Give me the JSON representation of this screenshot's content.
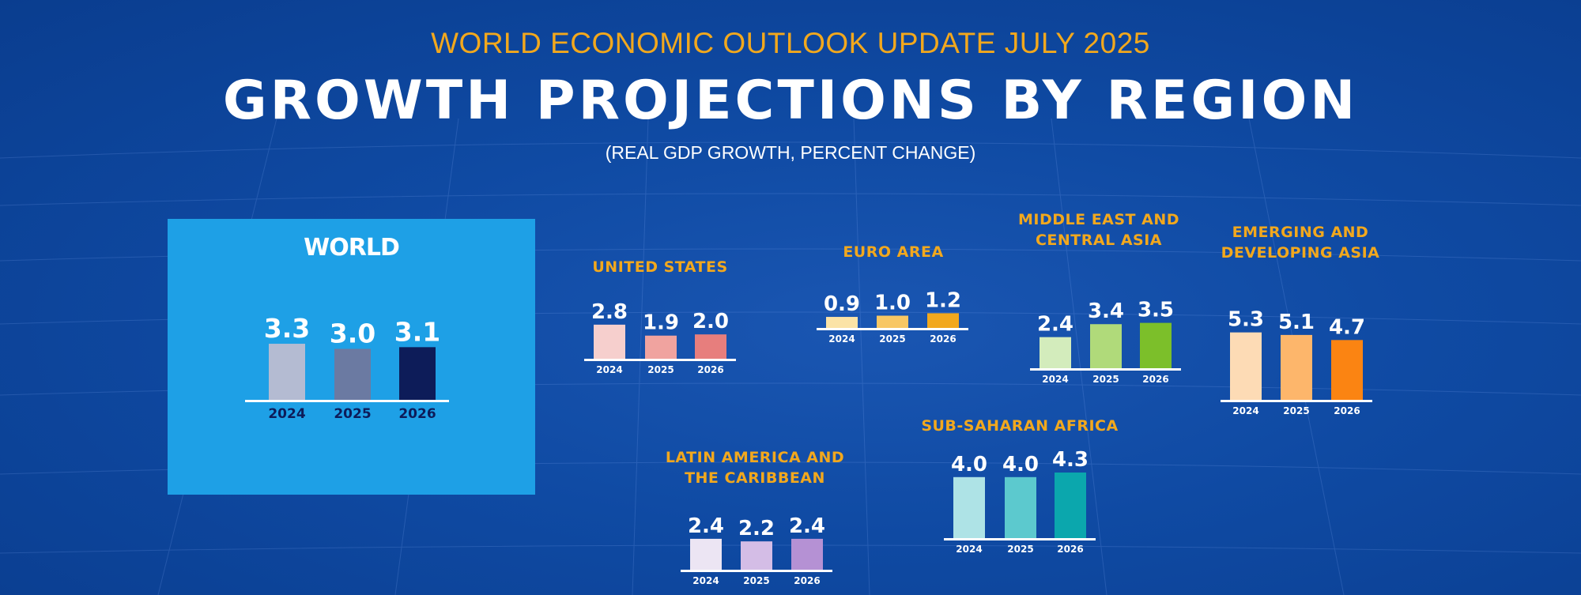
{
  "header": {
    "subtitle": "WORLD ECONOMIC OUTLOOK UPDATE JULY 2025",
    "title": "GROWTH PROJECTIONS BY REGION",
    "units": "(REAL GDP GROWTH, PERCENT CHANGE)"
  },
  "colors": {
    "background": "#0f4aa3",
    "world_panel": "#1ea0e6",
    "heading_accent": "#f2a81d",
    "baseline": "#ffffff"
  },
  "chart_data": [
    {
      "type": "bar",
      "region": "WORLD",
      "categories": [
        "2024",
        "2025",
        "2026"
      ],
      "values": [
        3.3,
        3.0,
        3.1
      ],
      "value_labels": [
        "3.3",
        "3.0",
        "3.1"
      ],
      "colors": [
        "#b4bbd2",
        "#6b7aa2",
        "#0d1c59"
      ]
    },
    {
      "type": "bar",
      "region": "UNITED STATES",
      "categories": [
        "2024",
        "2025",
        "2026"
      ],
      "values": [
        2.8,
        1.9,
        2.0
      ],
      "value_labels": [
        "2.8",
        "1.9",
        "2.0"
      ],
      "colors": [
        "#f6cfcd",
        "#f0a39f",
        "#e77e7d"
      ]
    },
    {
      "type": "bar",
      "region": "EURO AREA",
      "categories": [
        "2024",
        "2025",
        "2026"
      ],
      "values": [
        0.9,
        1.0,
        1.2
      ],
      "value_labels": [
        "0.9",
        "1.0",
        "1.2"
      ],
      "colors": [
        "#fbe3a6",
        "#f8c764",
        "#f2a81d"
      ]
    },
    {
      "type": "bar",
      "region": "MIDDLE EAST AND CENTRAL ASIA",
      "categories": [
        "2024",
        "2025",
        "2026"
      ],
      "values": [
        2.4,
        3.4,
        3.5
      ],
      "value_labels": [
        "2.4",
        "3.4",
        "3.5"
      ],
      "colors": [
        "#d3ecbc",
        "#b0da7a",
        "#7cbf2a"
      ]
    },
    {
      "type": "bar",
      "region": "EMERGING AND DEVELOPING ASIA",
      "categories": [
        "2024",
        "2025",
        "2026"
      ],
      "values": [
        5.3,
        5.1,
        4.7
      ],
      "value_labels": [
        "5.3",
        "5.1",
        "4.7"
      ],
      "colors": [
        "#fddbb5",
        "#fdb66b",
        "#fb8412"
      ]
    },
    {
      "type": "bar",
      "region": "LATIN AMERICA AND THE CARIBBEAN",
      "categories": [
        "2024",
        "2025",
        "2026"
      ],
      "values": [
        2.4,
        2.2,
        2.4
      ],
      "value_labels": [
        "2.4",
        "2.2",
        "2.4"
      ],
      "colors": [
        "#ece5f3",
        "#d4bde6",
        "#b591d4"
      ]
    },
    {
      "type": "bar",
      "region": "SUB-SAHARAN AFRICA",
      "categories": [
        "2024",
        "2025",
        "2026"
      ],
      "values": [
        4.0,
        4.0,
        4.3
      ],
      "value_labels": [
        "4.0",
        "4.0",
        "4.3"
      ],
      "colors": [
        "#aee3e6",
        "#5cc9ce",
        "#0ba7ad"
      ]
    }
  ]
}
